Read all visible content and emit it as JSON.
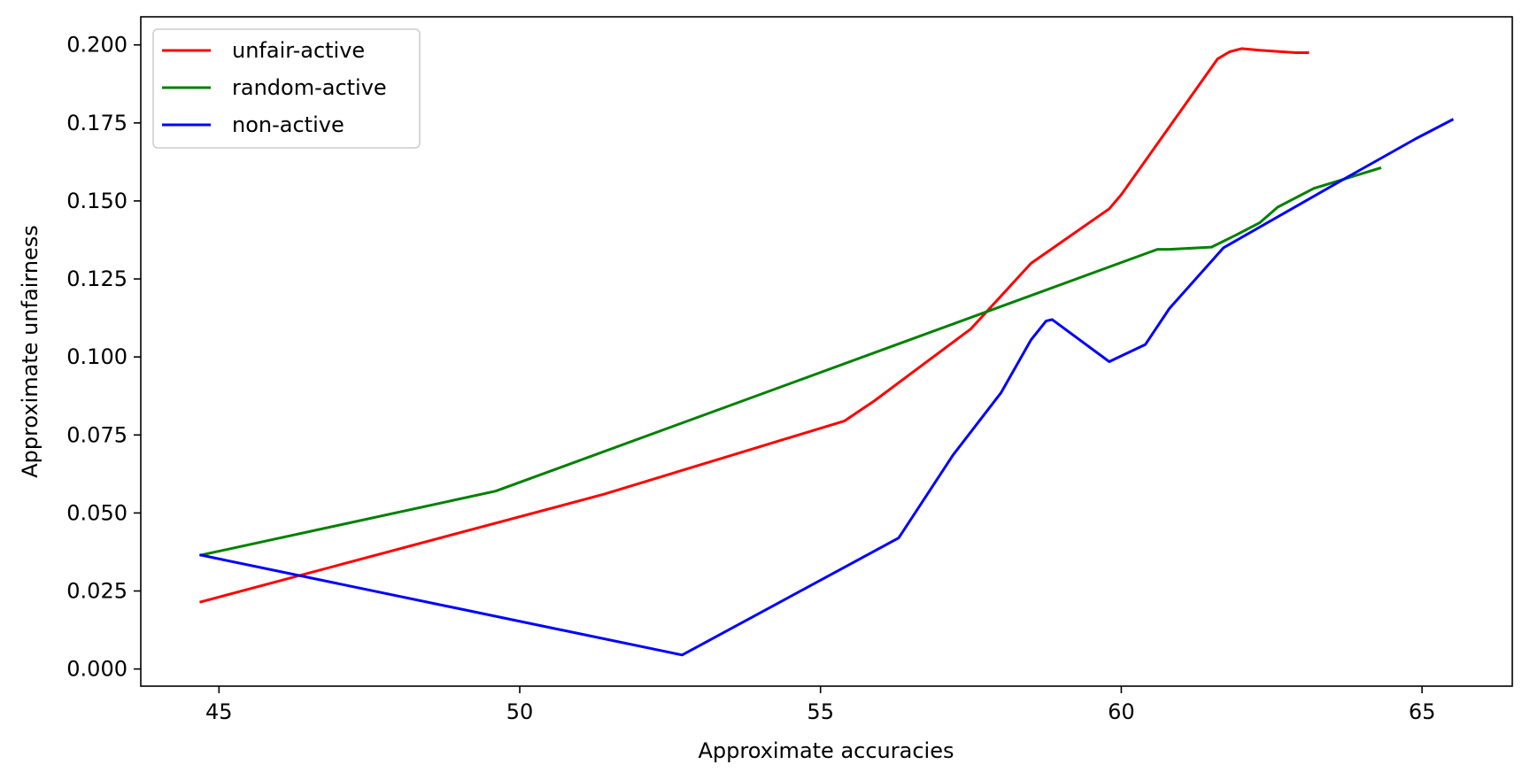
{
  "chart_data": {
    "type": "line",
    "xlabel": "Approximate accuracies",
    "ylabel": "Approximate unfairness",
    "xlim": [
      43.7,
      66.5
    ],
    "ylim": [
      -0.0055,
      0.209
    ],
    "xticks": [
      45,
      50,
      55,
      60,
      65
    ],
    "xtick_labels": [
      "45",
      "50",
      "55",
      "60",
      "65"
    ],
    "yticks": [
      0.0,
      0.025,
      0.05,
      0.075,
      0.1,
      0.125,
      0.15,
      0.175,
      0.2
    ],
    "ytick_labels": [
      "0.000",
      "0.025",
      "0.050",
      "0.075",
      "0.100",
      "0.125",
      "0.150",
      "0.175",
      "0.200"
    ],
    "grid": false,
    "legend_position": "top-left",
    "series": [
      {
        "name": "unfair-active",
        "color": "#ff0000",
        "x": [
          44.7,
          51.4,
          55.4,
          55.9,
          57.5,
          58.5,
          59.8,
          60.0,
          61.6,
          61.8,
          62.0,
          62.3,
          62.9,
          63.1
        ],
        "y": [
          0.0215,
          0.056,
          0.0795,
          0.086,
          0.109,
          0.13,
          0.1475,
          0.152,
          0.1955,
          0.1978,
          0.1988,
          0.1983,
          0.1975,
          0.1975
        ]
      },
      {
        "name": "random-active",
        "color": "#008000",
        "x": [
          44.7,
          49.6,
          60.6,
          60.8,
          61.5,
          61.9,
          62.3,
          62.6,
          63.2,
          64.3
        ],
        "y": [
          0.0365,
          0.057,
          0.1345,
          0.1345,
          0.1352,
          0.139,
          0.143,
          0.148,
          0.154,
          0.1605
        ]
      },
      {
        "name": "non-active",
        "color": "#0000ff",
        "x": [
          44.7,
          52.7,
          56.3,
          57.2,
          58.0,
          58.5,
          58.75,
          58.85,
          59.8,
          60.4,
          60.8,
          61.7,
          63.7,
          64.9,
          65.5
        ],
        "y": [
          0.0365,
          0.0045,
          0.042,
          0.0685,
          0.0885,
          0.1055,
          0.1115,
          0.112,
          0.0985,
          0.104,
          0.1155,
          0.135,
          0.157,
          0.17,
          0.176
        ]
      }
    ]
  }
}
